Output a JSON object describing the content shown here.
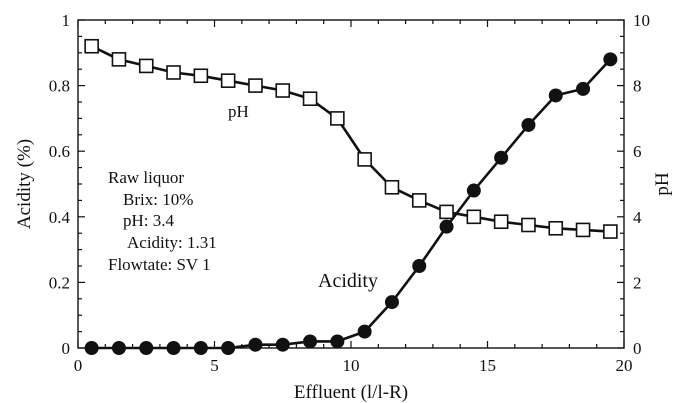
{
  "chart_data": {
    "type": "line",
    "title": "",
    "xlabel": "Effluent (l/l-R)",
    "ylabel": "Acidity (%)",
    "y2label": "pH",
    "xlim": [
      0,
      20
    ],
    "ylim": [
      0,
      1
    ],
    "y2lim": [
      0,
      10
    ],
    "x_ticks": [
      "0",
      "5",
      "10",
      "15",
      "20"
    ],
    "y_ticks": [
      "0",
      "0.2",
      "0.4",
      "0.6",
      "0.8",
      "1"
    ],
    "y2_ticks": [
      "0",
      "2",
      "4",
      "6",
      "8",
      "10"
    ],
    "grid": false,
    "legend": "none",
    "series": [
      {
        "name": "pH",
        "axis": "right",
        "marker": "open-square",
        "x": [
          0.5,
          1.5,
          2.5,
          3.5,
          4.5,
          5.5,
          6.5,
          7.5,
          8.5,
          9.5,
          10.5,
          11.5,
          12.5,
          13.5,
          14.5,
          15.5,
          16.5,
          17.5,
          18.5,
          19.5
        ],
        "values": [
          9.2,
          8.8,
          8.6,
          8.4,
          8.3,
          8.15,
          8.0,
          7.85,
          7.6,
          7.0,
          5.75,
          4.9,
          4.5,
          4.15,
          4.0,
          3.85,
          3.75,
          3.65,
          3.6,
          3.55
        ]
      },
      {
        "name": "Acidity",
        "axis": "left",
        "marker": "filled-circle",
        "x": [
          0.5,
          1.5,
          2.5,
          3.5,
          4.5,
          5.5,
          6.5,
          7.5,
          8.5,
          9.5,
          10.5,
          11.5,
          12.5,
          13.5,
          14.5,
          15.5,
          16.5,
          17.5,
          18.5,
          19.5
        ],
        "values": [
          0.0,
          0.0,
          0.0,
          0.0,
          0.0,
          0.0,
          0.01,
          0.01,
          0.02,
          0.02,
          0.05,
          0.14,
          0.25,
          0.37,
          0.48,
          0.58,
          0.68,
          0.77,
          0.79,
          0.88
        ]
      }
    ],
    "annotations": [
      "Raw liquor",
      "Brix: 10%",
      "pH: 3.4",
      "Acidity: 1.31",
      "Flowtate: SV 1"
    ]
  }
}
